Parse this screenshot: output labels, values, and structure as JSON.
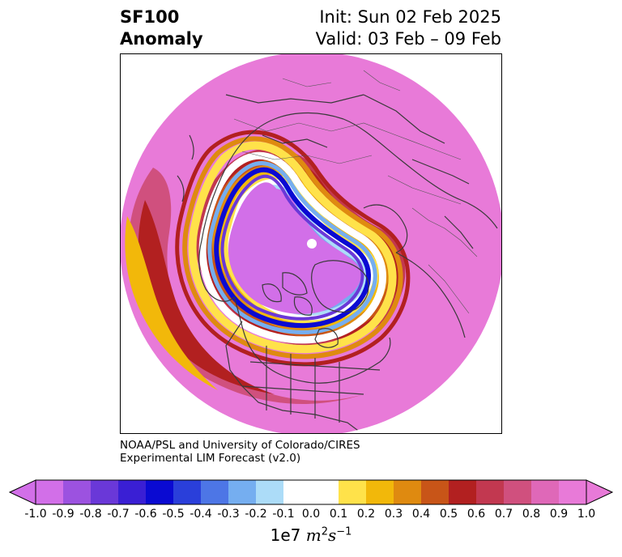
{
  "header": {
    "title_line1": "SF100",
    "title_line2": "Anomaly",
    "init_label": "Init: Sun 02 Feb 2025",
    "valid_label": "Valid: 03 Feb – 09 Feb"
  },
  "credit": {
    "line1": "NOAA/PSL and University of Colorado/CIRES",
    "line2": "Experimental LIM Forecast (v2.0)"
  },
  "colorbar": {
    "ticks": [
      "-1.0",
      "-0.9",
      "-0.8",
      "-0.7",
      "-0.6",
      "-0.5",
      "-0.4",
      "-0.3",
      "-0.2",
      "-0.1",
      "0.0",
      "0.1",
      "0.2",
      "0.3",
      "0.4",
      "0.5",
      "0.6",
      "0.7",
      "0.8",
      "0.9",
      "1.0"
    ],
    "colors": [
      "#d26fe8",
      "#9c52e0",
      "#6a38d8",
      "#3a1fd4",
      "#0a0ad2",
      "#2a3fda",
      "#4d76e6",
      "#75aef0",
      "#acdcf8",
      "#ffffff",
      "#ffffff",
      "#ffe24a",
      "#f2b80a",
      "#df8a10",
      "#c85518",
      "#b22020",
      "#c23850",
      "#d0507e",
      "#df68b8",
      "#e87ad8"
    ],
    "units_base": "1e7",
    "units_m": "m",
    "units_m_exp": "2",
    "units_s": "s",
    "units_s_exp": "−1"
  },
  "map": {
    "projection": "north-polar-stereographic",
    "field_colors": {
      "background": "#e87ad8",
      "negative_core": "#d26fe8",
      "ring_blue_dark": "#0a0ad2",
      "ring_blue_light": "#acdcf8",
      "ring_yellow": "#ffe24a",
      "ring_orange": "#df8a10",
      "ring_red": "#b22020",
      "coastline": "#3a3a3a"
    }
  }
}
